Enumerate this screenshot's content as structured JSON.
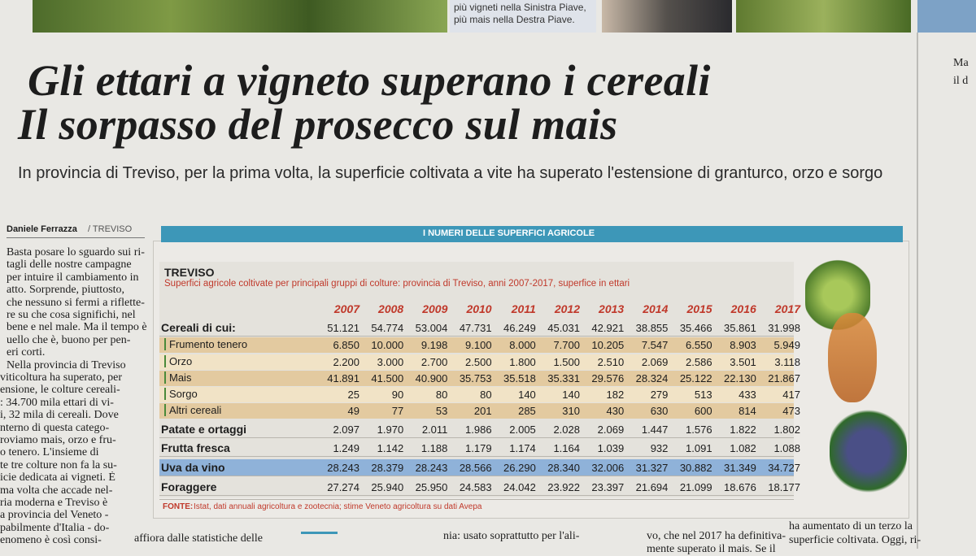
{
  "photo_caption": [
    "più vigneti nella Sinistra Piave,",
    "più mais nella Destra Piave."
  ],
  "headline": [
    "Gli ettari a vigneto superano i cereali",
    "Il sorpasso del prosecco sul mais"
  ],
  "subtitle": "In provincia di Treviso, per la prima volta, la superficie coltivata a vite ha superato l'estensione di granturco, orzo e sorgo",
  "byline": {
    "author": "Daniele Ferrazza",
    "place": "/ TREVISO"
  },
  "left_column": [
    "Basta posare lo sguardo sui ri-",
    "tagli delle nostre campagne",
    "per intuire il cambiamento in",
    "atto. Sorprende, piuttosto,",
    "che nessuno si fermi a riflette-",
    "re su che cosa significhi, nel",
    "bene e nel male. Ma il tempo è",
    "uello che è, buono per pen-",
    "eri corti.",
    "Nella provincia di Treviso",
    "viticoltura ha superato, per",
    "ensione, le colture cereali-",
    ": 34.700 mila ettari di vi-",
    "i, 32 mila di cereali. Dove",
    "nterno di questa catego-",
    "roviamo mais, orzo e fru-",
    "o tenero. L'insieme di",
    "te tre colture non fa la su-",
    "icie dedicata ai vigneti. È",
    "ma volta che accade nel-",
    "ria moderna e Treviso è",
    "a provincia del Veneto -",
    "pabilmente d'Italia - do-",
    "enomeno è così consi-"
  ],
  "right_column": [
    "Ma",
    "il d"
  ],
  "table": {
    "banner": "I NUMERI DELLE SUPERFICI AGRICOLE",
    "place": "TREVISO",
    "description": "Superfici agricole coltivate per principali gruppi di colture: provincia di Treviso, anni 2007-2017, superfice in ettari",
    "years": [
      "2007",
      "2008",
      "2009",
      "2010",
      "2011",
      "2012",
      "2013",
      "2014",
      "2015",
      "2016",
      "2017"
    ],
    "rows": [
      {
        "label": "Cereali di cui:",
        "values": [
          "51.121",
          "54.774",
          "53.004",
          "47.731",
          "46.249",
          "45.031",
          "42.921",
          "38.855",
          "35.466",
          "35.861",
          "31.998"
        ]
      },
      {
        "label": "Frumento tenero",
        "values": [
          "6.850",
          "10.000",
          "9.198",
          "9.100",
          "8.000",
          "7.700",
          "10.205",
          "7.547",
          "6.550",
          "8.903",
          "5.949"
        ]
      },
      {
        "label": "Orzo",
        "values": [
          "2.200",
          "3.000",
          "2.700",
          "2.500",
          "1.800",
          "1.500",
          "2.510",
          "2.069",
          "2.586",
          "3.501",
          "3.118"
        ]
      },
      {
        "label": "Mais",
        "values": [
          "41.891",
          "41.500",
          "40.900",
          "35.753",
          "35.518",
          "35.331",
          "29.576",
          "28.324",
          "25.122",
          "22.130",
          "21.867"
        ]
      },
      {
        "label": "Sorgo",
        "values": [
          "25",
          "90",
          "80",
          "80",
          "140",
          "140",
          "182",
          "279",
          "513",
          "433",
          "417"
        ]
      },
      {
        "label": "Altri cereali",
        "values": [
          "49",
          "77",
          "53",
          "201",
          "285",
          "310",
          "430",
          "630",
          "600",
          "814",
          "473"
        ]
      },
      {
        "label": "Patate e ortaggi",
        "values": [
          "2.097",
          "1.970",
          "2.011",
          "1.986",
          "2.005",
          "2.028",
          "2.069",
          "1.447",
          "1.576",
          "1.822",
          "1.802"
        ]
      },
      {
        "label": "Frutta fresca",
        "values": [
          "1.249",
          "1.142",
          "1.188",
          "1.179",
          "1.174",
          "1.164",
          "1.039",
          "932",
          "1.091",
          "1.082",
          "1.088"
        ]
      },
      {
        "label": "Uva da vino",
        "values": [
          "28.243",
          "28.379",
          "28.243",
          "28.566",
          "26.290",
          "28.340",
          "32.006",
          "31.327",
          "30.882",
          "31.349",
          "34.727"
        ]
      },
      {
        "label": "Foraggere",
        "values": [
          "27.274",
          "25.940",
          "25.950",
          "24.583",
          "24.042",
          "23.922",
          "23.397",
          "21.694",
          "21.099",
          "18.676",
          "18.177"
        ]
      }
    ],
    "source_label": "FONTE:",
    "source": "Istat, dati annuali agricoltura e zootecnia; stime Veneto agricoltura su dati Avepa"
  },
  "bottom_fragments": [
    "affiora dalle statistiche delle",
    "nia: usato soprattutto per l'ali-",
    "vo, che nel 2017 ha definitiva-",
    "mente superato il mais. Se il",
    "ha aumentato di un terzo la",
    "superficie coltivata. Oggi, ri-"
  ]
}
